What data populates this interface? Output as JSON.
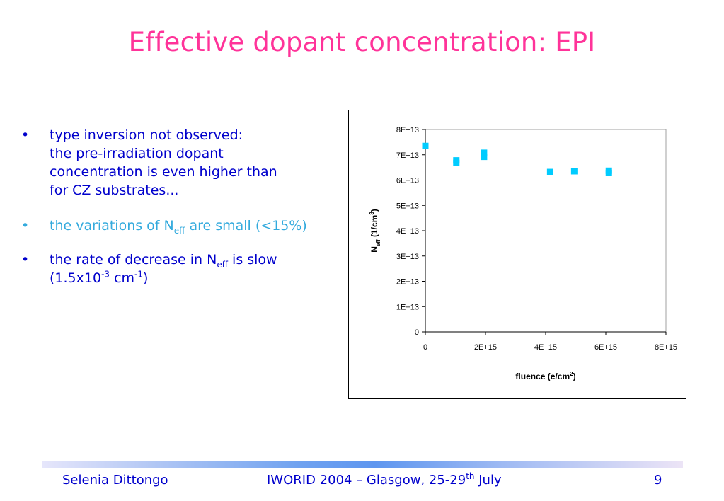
{
  "slide": {
    "title": "Effective dopant concentration: EPI",
    "bullets": [
      {
        "lines": [
          "type inversion not observed:",
          "the pre-irradiation dopant",
          "concentration is even higher than",
          "for CZ substrates..."
        ]
      },
      {
        "pre": "the variations of N",
        "sub": "eff",
        "post": " are small (<15%)"
      },
      {
        "pre": "the rate of decrease in N",
        "sub": "eff",
        "post": " is slow",
        "line2_pre": "(1.5x10",
        "sup1": "-3",
        "line2_mid": " cm",
        "sup2": "-1",
        "line2_post": ")"
      }
    ],
    "bullet_symbol": "•",
    "colors": {
      "title": "#ff3399",
      "text": "#0000cc",
      "accent_text": "#33aadd",
      "marker": "#00ccff"
    }
  },
  "footer": {
    "author": "Selenia Dittongo",
    "event_pre": "IWORID 2004 – Glasgow, 25-29",
    "event_sup": "th",
    "event_post": " July",
    "page": "9"
  },
  "chart_data": {
    "type": "scatter",
    "xlabel_pre": "fluence (e/cm",
    "xlabel_sup": "2",
    "xlabel_post": ")",
    "ylabel_main": "N",
    "ylabel_sub": "eff",
    "ylabel_mid": " (1/cm",
    "ylabel_sup": "3",
    "ylabel_post": ")",
    "xlim": [
      0,
      8000000000000000.0
    ],
    "ylim": [
      0,
      80000000000000.0
    ],
    "x_ticks": [
      "0",
      "2E+15",
      "4E+15",
      "6E+15",
      "8E+15"
    ],
    "y_ticks": [
      "0",
      "1E+13",
      "2E+13",
      "3E+13",
      "4E+13",
      "5E+13",
      "6E+13",
      "7E+13",
      "8E+13"
    ],
    "grid": false,
    "marker": "square",
    "series": [
      {
        "x": [
          0,
          1030000000000000.0,
          1030000000000000.0,
          1950000000000000.0,
          1950000000000000.0,
          4150000000000000.0,
          4950000000000000.0,
          6100000000000000.0,
          6100000000000000.0
        ],
        "y": [
          73500000000000.0,
          67800000000000.0,
          66800000000000.0,
          70800000000000.0,
          69200000000000.0,
          63200000000000.0,
          63500000000000.0,
          63700000000000.0,
          62800000000000.0
        ]
      }
    ]
  }
}
